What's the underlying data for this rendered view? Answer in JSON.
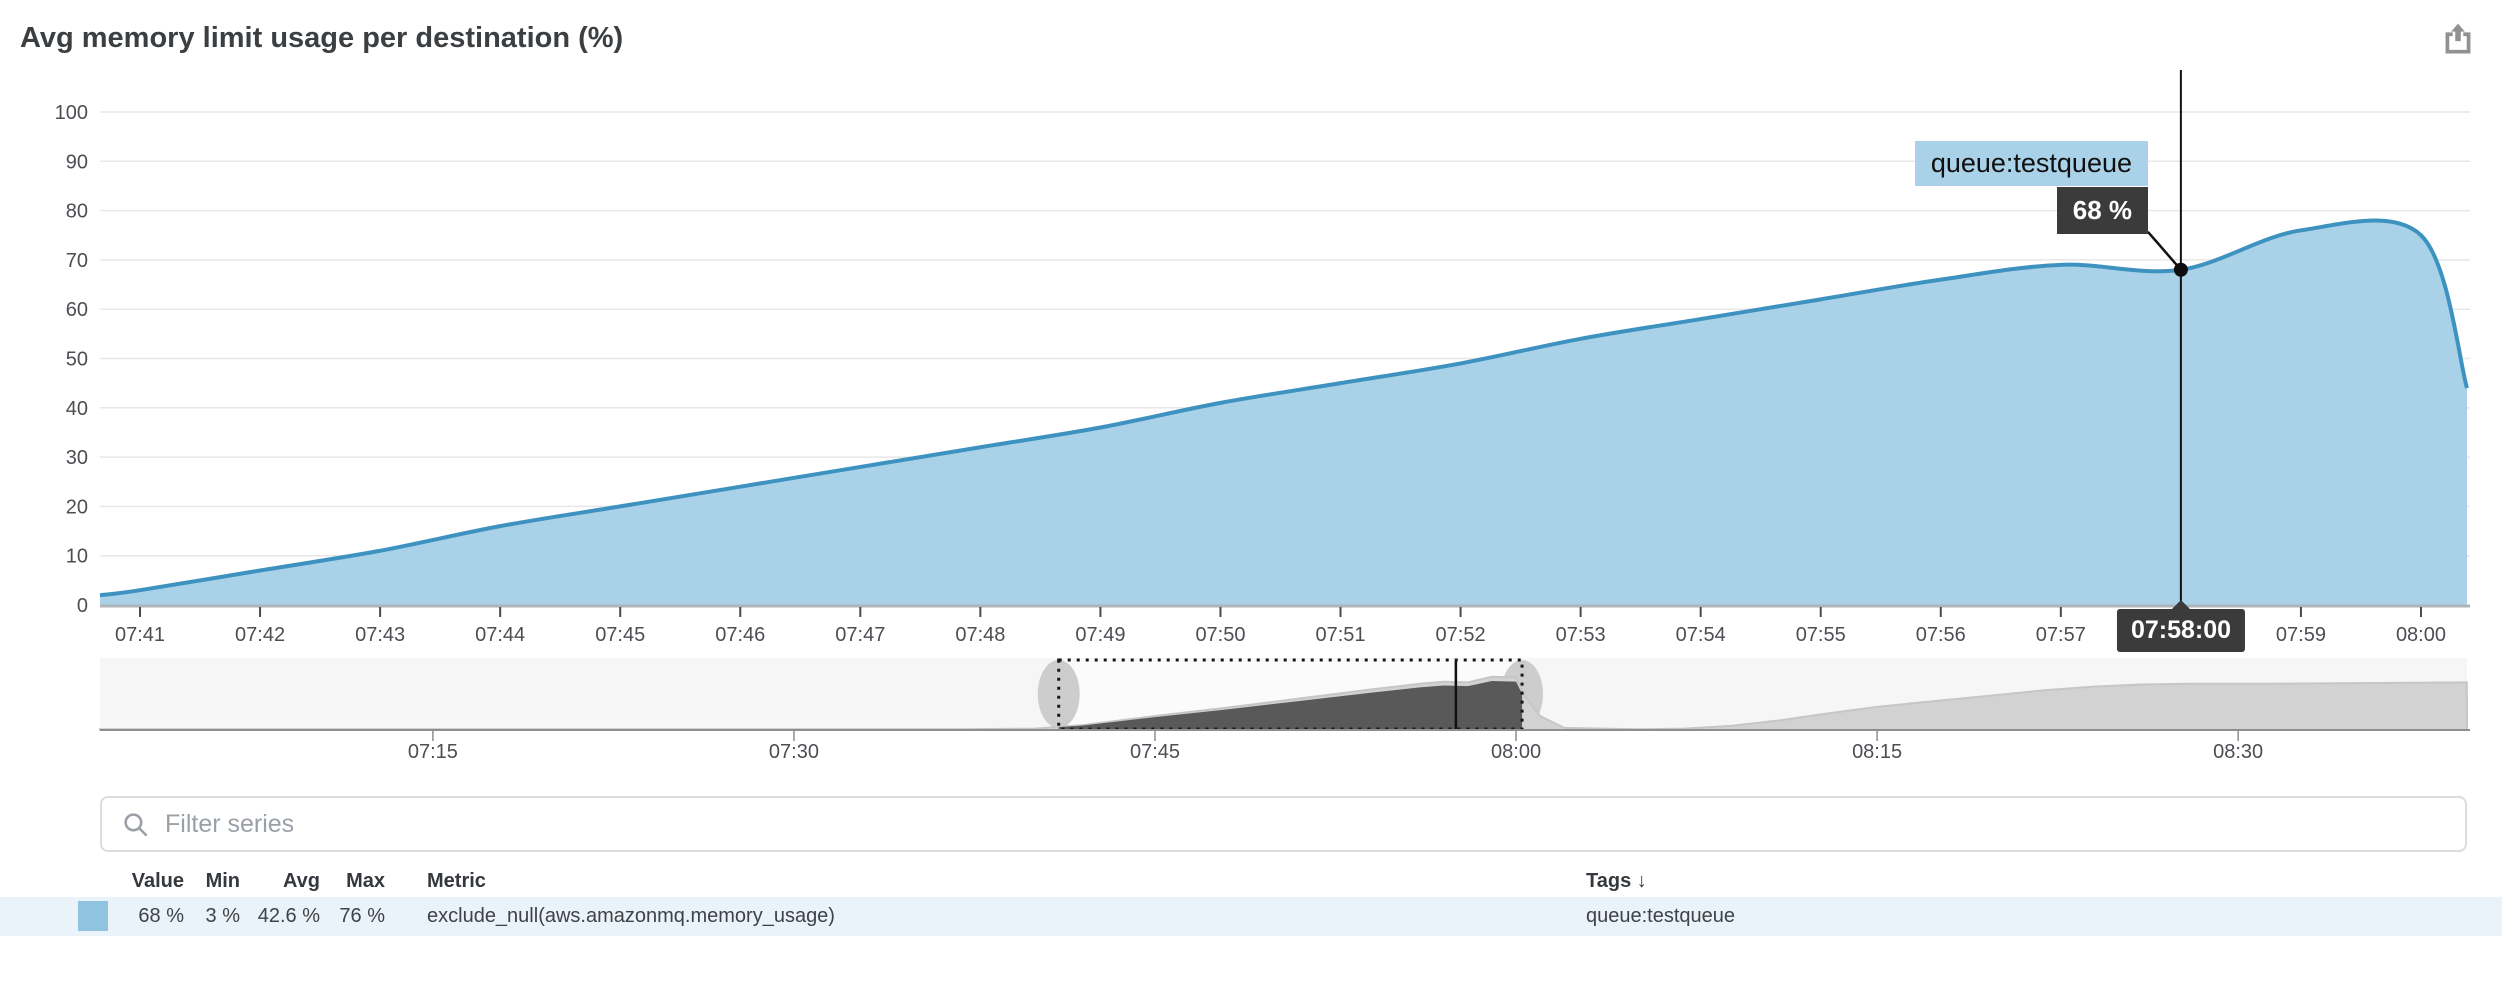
{
  "header": {
    "title": "Avg memory limit usage per destination (%)"
  },
  "icons": {
    "export": "share-up-arrow-box",
    "search": "magnifier",
    "sort": "down-arrow"
  },
  "tooltip": {
    "series_label": "queue:testqueue",
    "value_label": "68 %",
    "timestamp_label": "07:58:00"
  },
  "filter": {
    "placeholder": "Filter series"
  },
  "legend_table": {
    "headers": {
      "value": "Value",
      "min": "Min",
      "avg": "Avg",
      "max": "Max",
      "metric": "Metric",
      "tags": "Tags",
      "sort_arrow": "↓"
    },
    "rows": [
      {
        "swatch_color": "#8fc3e0",
        "value": "68 %",
        "min": "3 %",
        "avg": "42.6 %",
        "max": "76 %",
        "metric": "exclude_null(aws.amazonmq.memory_usage)",
        "tags": "queue:testqueue"
      }
    ]
  },
  "chart_data": {
    "type": "area",
    "title": "Avg memory limit usage per destination (%)",
    "xlabel": "",
    "ylabel": "",
    "ylim": [
      0,
      100
    ],
    "y_ticks": [
      0,
      10,
      20,
      30,
      40,
      50,
      60,
      70,
      80,
      90,
      100
    ],
    "grid": true,
    "legend_position": "table-below",
    "stats": {
      "value": 68,
      "min": 3,
      "avg": 42.6,
      "max": 76,
      "unit": "%"
    },
    "main": {
      "x_domain": [
        "07:40:40",
        "08:00:23"
      ],
      "x_ticks": [
        "07:41",
        "07:42",
        "07:43",
        "07:44",
        "07:45",
        "07:46",
        "07:47",
        "07:48",
        "07:49",
        "07:50",
        "07:51",
        "07:52",
        "07:53",
        "07:54",
        "07:55",
        "07:56",
        "07:57",
        "07:58",
        "07:59",
        "08:00"
      ],
      "series": [
        {
          "name": "queue:testqueue",
          "metric": "exclude_null(aws.amazonmq.memory_usage)",
          "line_color": "#3e92c0",
          "fill_color": "#a9d2e8",
          "points": [
            [
              "07:40:40",
              2
            ],
            [
              "07:41",
              3
            ],
            [
              "07:42",
              7
            ],
            [
              "07:43",
              11
            ],
            [
              "07:44",
              16
            ],
            [
              "07:45",
              20
            ],
            [
              "07:46",
              24
            ],
            [
              "07:47",
              28
            ],
            [
              "07:48",
              32
            ],
            [
              "07:49",
              36
            ],
            [
              "07:50",
              41
            ],
            [
              "07:51",
              45
            ],
            [
              "07:52",
              49
            ],
            [
              "07:53",
              54
            ],
            [
              "07:54",
              58
            ],
            [
              "07:55",
              62
            ],
            [
              "07:56",
              66
            ],
            [
              "07:57",
              69
            ],
            [
              "07:58",
              68
            ],
            [
              "07:59",
              76
            ],
            [
              "08:00",
              75
            ],
            [
              "08:00:23",
              44
            ]
          ]
        }
      ],
      "hover": {
        "time": "07:58:00",
        "value": 68,
        "value_label": "68 %",
        "series": "queue:testqueue",
        "hidden_tick": "07:58"
      }
    },
    "overview": {
      "x_domain": [
        "07:01",
        "08:39:30"
      ],
      "x_ticks": [
        "07:15",
        "07:30",
        "07:45",
        "08:00",
        "08:15",
        "08:30"
      ],
      "brush": {
        "from": "07:41",
        "to": "08:00:15"
      },
      "cursor": "07:57:30",
      "colors": {
        "series": "#d2d2d2",
        "series_edge": "#c6c6c6",
        "selected": "#595959",
        "handle": "#cdcdcd"
      },
      "points": [
        [
          "07:01",
          1
        ],
        [
          "07:30",
          1
        ],
        [
          "07:37",
          1
        ],
        [
          "07:40",
          2
        ],
        [
          "07:42",
          7
        ],
        [
          "07:45",
          20
        ],
        [
          "07:48",
          32
        ],
        [
          "07:51",
          45
        ],
        [
          "07:54",
          58
        ],
        [
          "07:56",
          66
        ],
        [
          "07:57",
          69
        ],
        [
          "07:58",
          68
        ],
        [
          "07:59",
          76
        ],
        [
          "08:00",
          75
        ],
        [
          "08:00:20",
          50
        ],
        [
          "08:01",
          20
        ],
        [
          "08:02",
          3
        ],
        [
          "08:05",
          1
        ],
        [
          "08:07",
          2
        ],
        [
          "08:09",
          6
        ],
        [
          "08:11",
          14
        ],
        [
          "08:13",
          24
        ],
        [
          "08:15",
          33
        ],
        [
          "08:17",
          40
        ],
        [
          "08:20",
          50
        ],
        [
          "08:22",
          57
        ],
        [
          "08:24",
          62
        ],
        [
          "08:26",
          65
        ],
        [
          "08:28",
          66
        ],
        [
          "08:31",
          66
        ],
        [
          "08:35",
          67
        ],
        [
          "08:39:30",
          68
        ]
      ]
    }
  }
}
